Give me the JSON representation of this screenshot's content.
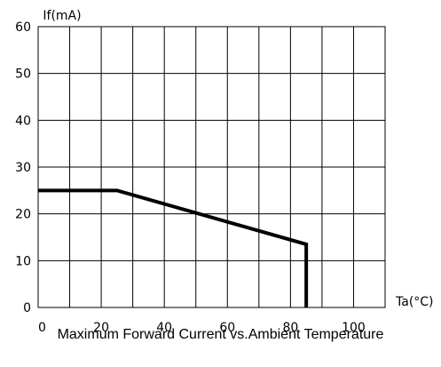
{
  "chart_data": {
    "type": "line",
    "title": "Maximum Forward Current vs.Ambient Temperature",
    "xlabel": "Ta(°C)",
    "ylabel": "If(mA)",
    "xlim": [
      0,
      110
    ],
    "ylim": [
      0,
      60
    ],
    "x_ticks": [
      "0",
      "20",
      "40",
      "60",
      "80",
      "100"
    ],
    "y_ticks": [
      "0",
      "10",
      "20",
      "30",
      "40",
      "50",
      "60"
    ],
    "grid": true,
    "series": [
      {
        "x": [
          0,
          25,
          85,
          85
        ],
        "y": [
          25,
          25,
          13.5,
          0
        ]
      }
    ]
  }
}
